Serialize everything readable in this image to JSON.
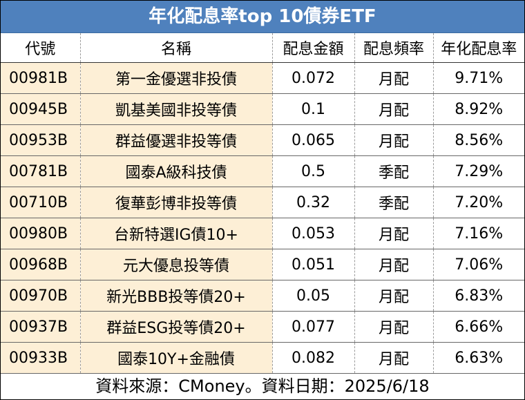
{
  "title": "年化配息率top 10債券ETF",
  "headers": [
    "代號",
    "名稱",
    "配息金額",
    "配息頻率",
    "年化配息率"
  ],
  "rows": [
    [
      "00981B",
      "第一金優選非投債",
      "0.072",
      "月配",
      "9.71%"
    ],
    [
      "00945B",
      "凱基美國非投等債",
      "0.1",
      "月配",
      "8.92%"
    ],
    [
      "00953B",
      "群益優選非投等債",
      "0.065",
      "月配",
      "8.56%"
    ],
    [
      "00781B",
      "國泰A級科技債",
      "0.5",
      "季配",
      "7.29%"
    ],
    [
      "00710B",
      "復華彭博非投等債",
      "0.32",
      "季配",
      "7.20%"
    ],
    [
      "00980B",
      "台新特選IG債10+",
      "0.053",
      "月配",
      "7.16%"
    ],
    [
      "00968B",
      "元大優息投等債",
      "0.051",
      "月配",
      "7.06%"
    ],
    [
      "00970B",
      "新光BBB投等債20+",
      "0.05",
      "月配",
      "6.83%"
    ],
    [
      "00937B",
      "群益ESG投等債20+",
      "0.077",
      "月配",
      "6.66%"
    ],
    [
      "00933B",
      "國泰10Y+金融債",
      "0.082",
      "月配",
      "6.63%"
    ]
  ],
  "footer": "資料來源：CMoney。資料日期：2025/6/18",
  "colors": {
    "title_bg": "#4f81bd",
    "highlight_bg": "#fdefd6"
  }
}
